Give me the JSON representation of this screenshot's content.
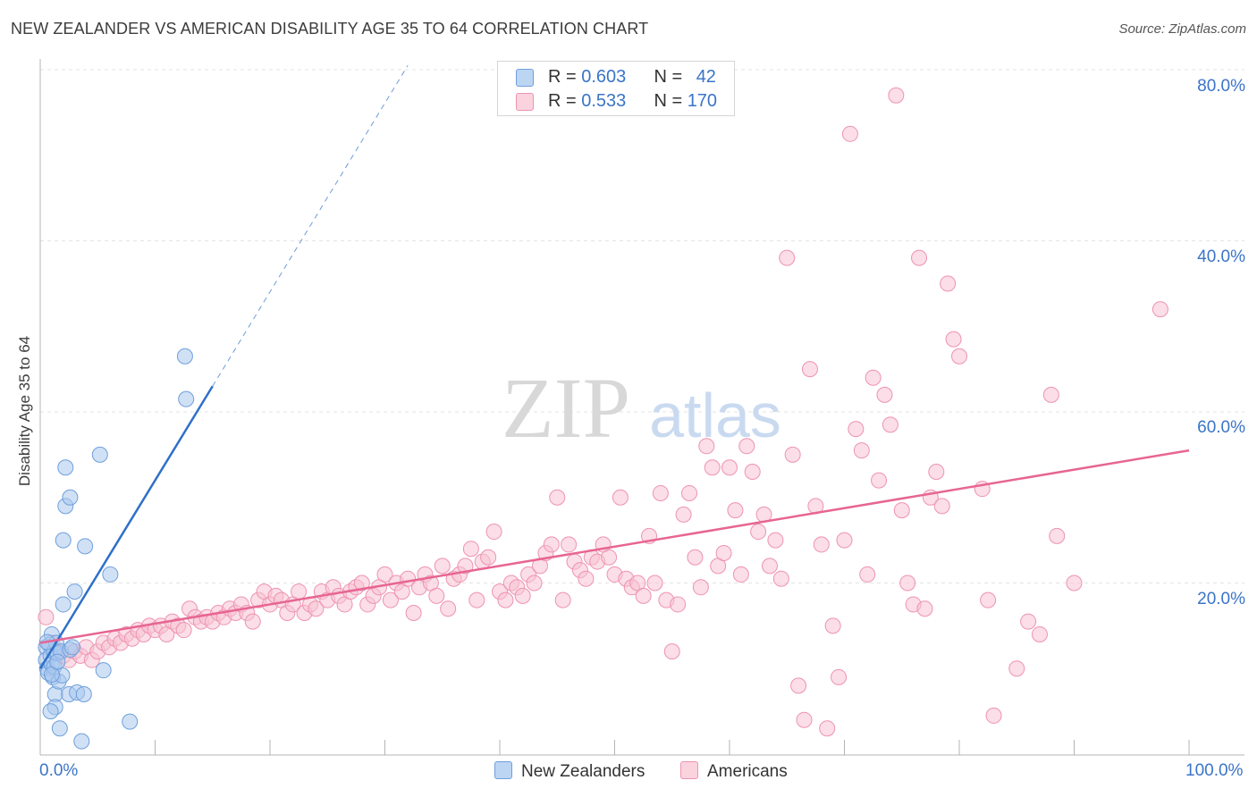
{
  "header": {
    "title": "NEW ZEALANDER VS AMERICAN DISABILITY AGE 35 TO 64 CORRELATION CHART",
    "source": "Source: ZipAtlas.com"
  },
  "watermark": {
    "zip": "ZIP",
    "atlas": "atlas"
  },
  "legend_top": {
    "rows": [
      {
        "r_label": "R = ",
        "r_value": "0.603",
        "n_label": "N = ",
        "n_value": "42"
      },
      {
        "r_label": "R = ",
        "r_value": "0.533",
        "n_label": "N = ",
        "n_value": "170"
      }
    ]
  },
  "legend_bottom": {
    "items": [
      {
        "label": "New Zealanders"
      },
      {
        "label": "Americans"
      }
    ]
  },
  "axes": {
    "ylabel": "Disability Age 35 to 64",
    "x_ticks": [
      "0.0%",
      "100.0%"
    ],
    "y_ticks": [
      "20.0%",
      "40.0%",
      "60.0%",
      "80.0%"
    ]
  },
  "colors": {
    "blue_fill": "#a9c8ef",
    "blue_stroke": "#6f9fdc",
    "blue_line": "#2f70c8",
    "pink_fill": "#f7c3d3",
    "pink_stroke": "#ee93b1",
    "pink_line": "#e76593",
    "tick_label": "#3a74c9",
    "grid": "#e3e3e3"
  },
  "chart_data": {
    "type": "scatter",
    "title": "NEW ZEALANDER VS AMERICAN DISABILITY AGE 35 TO 64 CORRELATION CHART",
    "xlabel": "",
    "ylabel": "Disability Age 35 to 64",
    "xlim": [
      0,
      100
    ],
    "ylim": [
      0,
      80
    ],
    "grid": true,
    "legend": "top-center",
    "series": [
      {
        "name": "New Zealanders",
        "r": 0.603,
        "n": 42,
        "trend": {
          "x0": 0,
          "y0": 10.0,
          "x1": 15,
          "y1": 43.0,
          "dash_to_x": 32,
          "dash_to_y": 80.5
        },
        "points": [
          [
            0.5,
            12.5
          ],
          [
            0.5,
            11
          ],
          [
            0.6,
            10
          ],
          [
            0.7,
            9.5
          ],
          [
            0.8,
            12.8
          ],
          [
            0.9,
            11.5
          ],
          [
            1.0,
            14
          ],
          [
            1.0,
            10.5
          ],
          [
            1.1,
            9
          ],
          [
            1.2,
            12
          ],
          [
            1.2,
            10.2
          ],
          [
            1.3,
            7
          ],
          [
            1.3,
            5.5
          ],
          [
            1.4,
            13
          ],
          [
            1.5,
            11.8
          ],
          [
            1.6,
            8.5
          ],
          [
            1.7,
            3
          ],
          [
            1.8,
            12
          ],
          [
            1.9,
            9.2
          ],
          [
            2.0,
            17.5
          ],
          [
            2.0,
            25
          ],
          [
            2.2,
            29
          ],
          [
            2.2,
            33.5
          ],
          [
            2.5,
            7
          ],
          [
            2.6,
            12.2
          ],
          [
            2.6,
            30
          ],
          [
            3.0,
            19
          ],
          [
            3.2,
            7.2
          ],
          [
            3.6,
            1.5
          ],
          [
            3.8,
            7
          ],
          [
            3.9,
            24.3
          ],
          [
            5.2,
            35
          ],
          [
            5.5,
            9.8
          ],
          [
            6.1,
            21
          ],
          [
            7.8,
            3.8
          ],
          [
            12.6,
            46.5
          ],
          [
            12.7,
            41.5
          ],
          [
            1.0,
            9.3
          ],
          [
            0.9,
            5
          ],
          [
            2.8,
            12.5
          ],
          [
            1.5,
            10.8
          ],
          [
            0.6,
            13.1
          ]
        ]
      },
      {
        "name": "Americans",
        "r": 0.533,
        "n": 170,
        "trend": {
          "x0": 0,
          "y0": 13.0,
          "x1": 100,
          "y1": 35.5
        },
        "points": [
          [
            0.5,
            16
          ],
          [
            1,
            13
          ],
          [
            1.5,
            12
          ],
          [
            2,
            11.5
          ],
          [
            2.5,
            11
          ],
          [
            3,
            12
          ],
          [
            3.5,
            11.5
          ],
          [
            4,
            12.5
          ],
          [
            4.5,
            11
          ],
          [
            5,
            12
          ],
          [
            5.5,
            13
          ],
          [
            6,
            12.5
          ],
          [
            6.5,
            13.5
          ],
          [
            7,
            13
          ],
          [
            7.5,
            14
          ],
          [
            8,
            13.5
          ],
          [
            8.5,
            14.5
          ],
          [
            9,
            14
          ],
          [
            9.5,
            15
          ],
          [
            10,
            14.5
          ],
          [
            10.5,
            15
          ],
          [
            11,
            14
          ],
          [
            11.5,
            15.5
          ],
          [
            12,
            15
          ],
          [
            12.5,
            14.5
          ],
          [
            13,
            17
          ],
          [
            13.5,
            16
          ],
          [
            14,
            15.5
          ],
          [
            14.5,
            16
          ],
          [
            15,
            15.5
          ],
          [
            15.5,
            16.5
          ],
          [
            16,
            16
          ],
          [
            16.5,
            17
          ],
          [
            17,
            16.5
          ],
          [
            17.5,
            17.5
          ],
          [
            18,
            16.5
          ],
          [
            18.5,
            15.5
          ],
          [
            19,
            18
          ],
          [
            19.5,
            19
          ],
          [
            20,
            17.5
          ],
          [
            20.5,
            18.5
          ],
          [
            21,
            18
          ],
          [
            21.5,
            16.5
          ],
          [
            22,
            17.5
          ],
          [
            22.5,
            19
          ],
          [
            23,
            16.5
          ],
          [
            23.5,
            17.5
          ],
          [
            24,
            17
          ],
          [
            24.5,
            19
          ],
          [
            25,
            18
          ],
          [
            25.5,
            19.5
          ],
          [
            26,
            18.5
          ],
          [
            26.5,
            17.5
          ],
          [
            27,
            19
          ],
          [
            27.5,
            19.5
          ],
          [
            28,
            20
          ],
          [
            28.5,
            17.5
          ],
          [
            29,
            18.5
          ],
          [
            29.5,
            19.5
          ],
          [
            30,
            21
          ],
          [
            30.5,
            18
          ],
          [
            31,
            20
          ],
          [
            31.5,
            19
          ],
          [
            32,
            20.5
          ],
          [
            32.5,
            16.5
          ],
          [
            33,
            19.5
          ],
          [
            33.5,
            21
          ],
          [
            34,
            20
          ],
          [
            34.5,
            18.5
          ],
          [
            35,
            22
          ],
          [
            35.5,
            17
          ],
          [
            36,
            20.5
          ],
          [
            36.5,
            21
          ],
          [
            37,
            22
          ],
          [
            37.5,
            24
          ],
          [
            38,
            18
          ],
          [
            38.5,
            22.5
          ],
          [
            39,
            23
          ],
          [
            39.5,
            26
          ],
          [
            40,
            19
          ],
          [
            40.5,
            18
          ],
          [
            41,
            20
          ],
          [
            41.5,
            19.5
          ],
          [
            42,
            18.5
          ],
          [
            42.5,
            21
          ],
          [
            43,
            20
          ],
          [
            43.5,
            22
          ],
          [
            44,
            23.5
          ],
          [
            44.5,
            24.5
          ],
          [
            45,
            30
          ],
          [
            45.5,
            18
          ],
          [
            46,
            24.5
          ],
          [
            46.5,
            22.5
          ],
          [
            47,
            21.5
          ],
          [
            47.5,
            20.5
          ],
          [
            48,
            23
          ],
          [
            48.5,
            22.5
          ],
          [
            49,
            24.5
          ],
          [
            49.5,
            23
          ],
          [
            50,
            21
          ],
          [
            50.5,
            30
          ],
          [
            51,
            20.5
          ],
          [
            51.5,
            19.5
          ],
          [
            52,
            20
          ],
          [
            52.5,
            18.5
          ],
          [
            53,
            25.5
          ],
          [
            53.5,
            20
          ],
          [
            54,
            30.5
          ],
          [
            54.5,
            18
          ],
          [
            55,
            12
          ],
          [
            55.5,
            17.5
          ],
          [
            56,
            28
          ],
          [
            56.5,
            30.5
          ],
          [
            57,
            23
          ],
          [
            57.5,
            19.5
          ],
          [
            58,
            36
          ],
          [
            58.5,
            33.5
          ],
          [
            59,
            22
          ],
          [
            59.5,
            23.5
          ],
          [
            60,
            33.5
          ],
          [
            60.5,
            28.5
          ],
          [
            61,
            21
          ],
          [
            61.5,
            36
          ],
          [
            62,
            33
          ],
          [
            62.5,
            26
          ],
          [
            63,
            28
          ],
          [
            63.5,
            22
          ],
          [
            64,
            25
          ],
          [
            64.5,
            20.5
          ],
          [
            65,
            58
          ],
          [
            65.5,
            35
          ],
          [
            66,
            8
          ],
          [
            66.5,
            4
          ],
          [
            67,
            45
          ],
          [
            67.5,
            29
          ],
          [
            68,
            24.5
          ],
          [
            68.5,
            3
          ],
          [
            69,
            15
          ],
          [
            69.5,
            9
          ],
          [
            70,
            25
          ],
          [
            70.5,
            72.5
          ],
          [
            71,
            38
          ],
          [
            71.5,
            35.5
          ],
          [
            72,
            21
          ],
          [
            72.5,
            44
          ],
          [
            73,
            32
          ],
          [
            73.5,
            42
          ],
          [
            74,
            38.5
          ],
          [
            74.5,
            77
          ],
          [
            75,
            28.5
          ],
          [
            75.5,
            20
          ],
          [
            76,
            17.5
          ],
          [
            76.5,
            58
          ],
          [
            77,
            17
          ],
          [
            77.5,
            30
          ],
          [
            78,
            33
          ],
          [
            78.5,
            29
          ],
          [
            79,
            55
          ],
          [
            79.5,
            48.5
          ],
          [
            80,
            46.5
          ],
          [
            82,
            31
          ],
          [
            82.5,
            18
          ],
          [
            83,
            4.5
          ],
          [
            85,
            10
          ],
          [
            86,
            15.5
          ],
          [
            87,
            14
          ],
          [
            88,
            42
          ],
          [
            88.5,
            25.5
          ],
          [
            90,
            20
          ],
          [
            97.5,
            52
          ]
        ]
      }
    ]
  }
}
